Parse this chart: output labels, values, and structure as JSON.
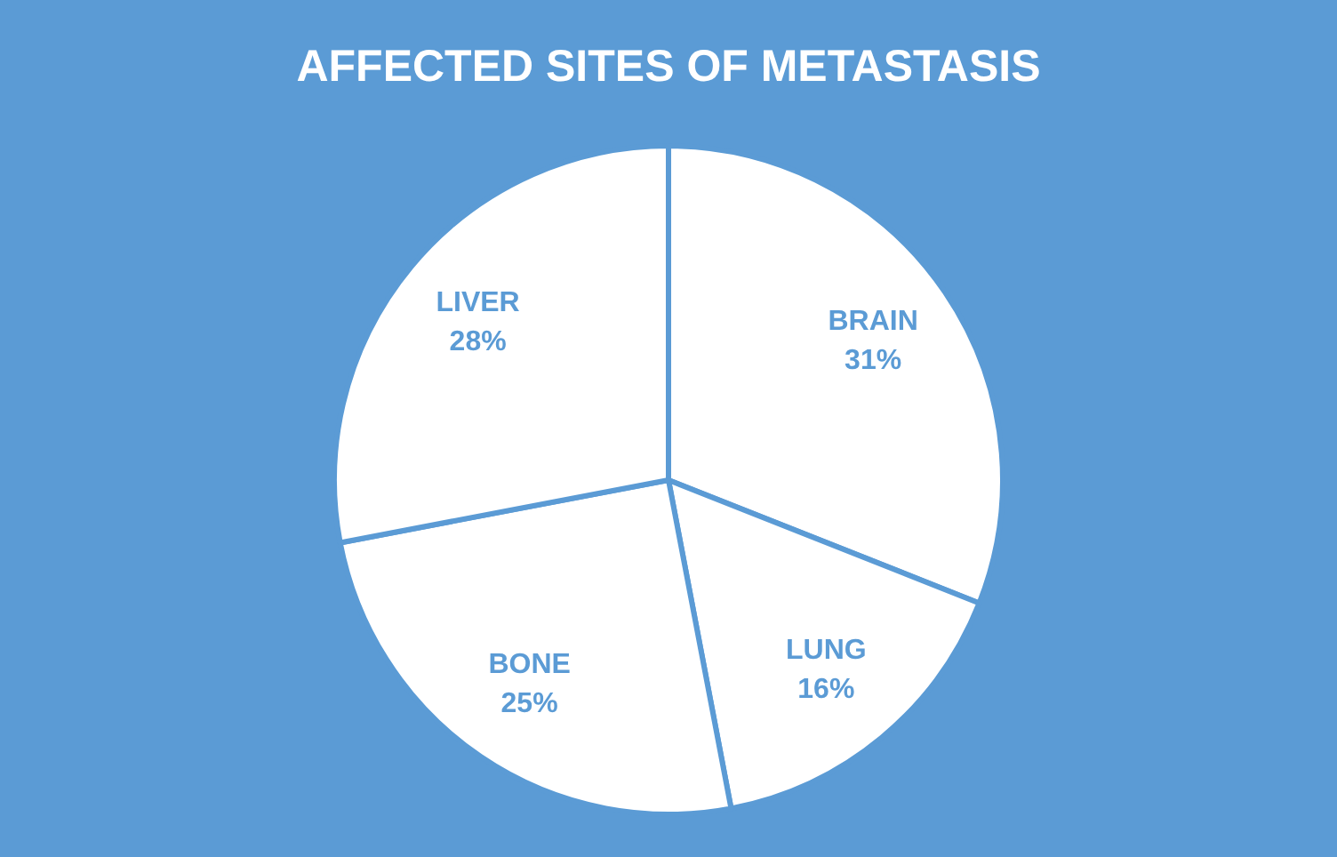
{
  "chart_data": {
    "type": "pie",
    "title": "AFFECTED SITES OF METASTASIS",
    "categories": [
      "BRAIN",
      "LUNG",
      "BONE",
      "LIVER"
    ],
    "values": [
      31,
      16,
      25,
      28
    ],
    "value_labels": [
      "31%",
      "16%",
      "25%",
      "28%"
    ],
    "colors": [
      "#ffffff",
      "#ffffff",
      "#ffffff",
      "#ffffff"
    ],
    "legend": false
  }
}
